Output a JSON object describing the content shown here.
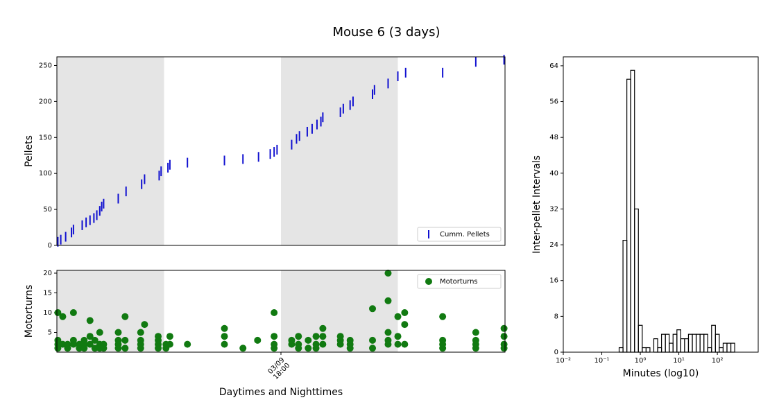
{
  "title": "Mouse 6 (3 days)",
  "chart_data": [
    {
      "type": "event",
      "ylabel": "Pellets",
      "xlim": [
        0,
        46
      ],
      "ylim": [
        0,
        262
      ],
      "yticks": [
        0,
        50,
        100,
        150,
        200,
        250
      ],
      "shade": [
        [
          0,
          11
        ],
        [
          23,
          35
        ]
      ],
      "shade_color": "#e5e5e5",
      "legend": "lower right",
      "series": [
        {
          "name": "Cumm. Pellets",
          "color": "#1010d0",
          "x": [
            0.1,
            0.4,
            0.9,
            1.5,
            1.7,
            2.6,
            3.0,
            3.4,
            3.8,
            4.1,
            4.4,
            4.6,
            4.8,
            6.3,
            7.1,
            8.7,
            9.0,
            10.5,
            10.7,
            11.4,
            11.6,
            13.4,
            17.2,
            19.1,
            20.7,
            21.9,
            22.3,
            22.6,
            24.1,
            24.6,
            24.9,
            25.7,
            26.2,
            26.7,
            27.1,
            27.3,
            29.1,
            29.4,
            30.1,
            30.4,
            32.4,
            32.6,
            34.0,
            35.0,
            35.8,
            39.6,
            43.0,
            45.9
          ],
          "values": [
            5,
            8,
            12,
            18,
            22,
            28,
            32,
            35,
            38,
            42,
            48,
            54,
            58,
            65,
            75,
            85,
            92,
            97,
            103,
            108,
            112,
            115,
            118,
            120,
            123,
            127,
            130,
            133,
            140,
            148,
            152,
            158,
            162,
            168,
            172,
            178,
            185,
            190,
            195,
            200,
            210,
            216,
            225,
            235,
            240,
            240,
            255,
            258
          ]
        }
      ]
    },
    {
      "type": "scatter",
      "ylabel": "Motorturns",
      "xlabel": "Daytimes and Nighttimes",
      "xlim": [
        0,
        46
      ],
      "ylim": [
        0,
        20.7
      ],
      "yticks": [
        5,
        10,
        15,
        20
      ],
      "xticks": [
        {
          "value": 23,
          "label": "03/09\n18:00"
        }
      ],
      "shade": [
        [
          0,
          11
        ],
        [
          23,
          35
        ]
      ],
      "shade_color": "#e5e5e5",
      "legend": "upper right",
      "series": [
        {
          "name": "Motorturns",
          "color": "#117a11",
          "x": [
            0.1,
            0.1,
            0.1,
            0.1,
            0.6,
            0.6,
            1.1,
            1.1,
            1.7,
            1.7,
            1.7,
            2.3,
            2.3,
            2.8,
            2.8,
            2.8,
            3.4,
            3.4,
            3.4,
            3.9,
            3.9,
            4.4,
            4.4,
            4.4,
            4.8,
            4.8,
            6.3,
            6.3,
            6.3,
            6.3,
            7.0,
            7.0,
            7.0,
            8.6,
            8.6,
            8.6,
            8.6,
            9.0,
            10.4,
            10.4,
            10.4,
            10.4,
            11.2,
            11.2,
            11.6,
            11.6,
            13.4,
            17.2,
            17.2,
            17.2,
            19.1,
            20.6,
            22.3,
            22.3,
            22.3,
            22.3,
            24.1,
            24.1,
            24.8,
            24.8,
            24.8,
            25.8,
            25.8,
            26.6,
            26.6,
            26.6,
            27.3,
            27.3,
            27.3,
            29.1,
            29.1,
            29.1,
            30.1,
            30.1,
            30.1,
            32.4,
            32.4,
            32.4,
            34.0,
            34.0,
            34.0,
            34.0,
            34.0,
            35.0,
            35.0,
            35.0,
            35.7,
            35.7,
            35.7,
            39.6,
            39.6,
            39.6,
            39.6,
            43.0,
            43.0,
            43.0,
            43.0,
            45.9,
            45.9,
            45.9,
            45.9
          ],
          "values": [
            10,
            3,
            2,
            1,
            9,
            2,
            2,
            1,
            10,
            3,
            2,
            2,
            1,
            3,
            2,
            1,
            8,
            4,
            2,
            3,
            1,
            5,
            2,
            1,
            2,
            1,
            5,
            3,
            2,
            1,
            9,
            3,
            1,
            5,
            3,
            2,
            1,
            7,
            4,
            3,
            2,
            1,
            2,
            1,
            4,
            2,
            2,
            6,
            4,
            2,
            1,
            3,
            10,
            4,
            2,
            1,
            3,
            2,
            4,
            2,
            1,
            3,
            1,
            4,
            2,
            1,
            6,
            4,
            2,
            4,
            3,
            2,
            3,
            2,
            1,
            11,
            3,
            1,
            20,
            13,
            5,
            3,
            2,
            9,
            4,
            2,
            10,
            7,
            2,
            9,
            3,
            2,
            1,
            5,
            3,
            2,
            1,
            6,
            4,
            2,
            1
          ]
        }
      ]
    },
    {
      "type": "histogram",
      "ylabel": "Inter-pellet Intervals",
      "xlabel": "Minutes (log10)",
      "xscale": "log",
      "xlim": [
        0.01,
        1150
      ],
      "ylim": [
        0,
        66
      ],
      "yticks": [
        0,
        8,
        16,
        24,
        32,
        40,
        48,
        56,
        64
      ],
      "xticks": [
        {
          "value": 0.01,
          "label": "10⁻²"
        },
        {
          "value": 0.1,
          "label": "10⁻¹"
        },
        {
          "value": 1,
          "label": "10⁰"
        },
        {
          "value": 10,
          "label": "10¹"
        },
        {
          "value": 100,
          "label": "10²"
        }
      ],
      "color": "#000000",
      "bins": [
        0.282,
        0.355,
        0.447,
        0.562,
        0.708,
        0.891,
        1.122,
        1.413,
        1.778,
        2.239,
        2.818,
        3.548,
        4.467,
        5.623,
        7.079,
        8.913,
        11.22,
        14.13,
        17.78,
        22.39,
        28.18,
        35.48,
        44.67,
        56.23,
        70.79,
        89.13,
        112.2,
        141.3,
        177.8,
        223.9,
        281.8
      ],
      "values": [
        1,
        25,
        61,
        63,
        32,
        6,
        1,
        1,
        0,
        3,
        1,
        4,
        4,
        2,
        4,
        5,
        3,
        3,
        4,
        4,
        4,
        4,
        4,
        1,
        6,
        4,
        1,
        2,
        2,
        2
      ]
    }
  ]
}
